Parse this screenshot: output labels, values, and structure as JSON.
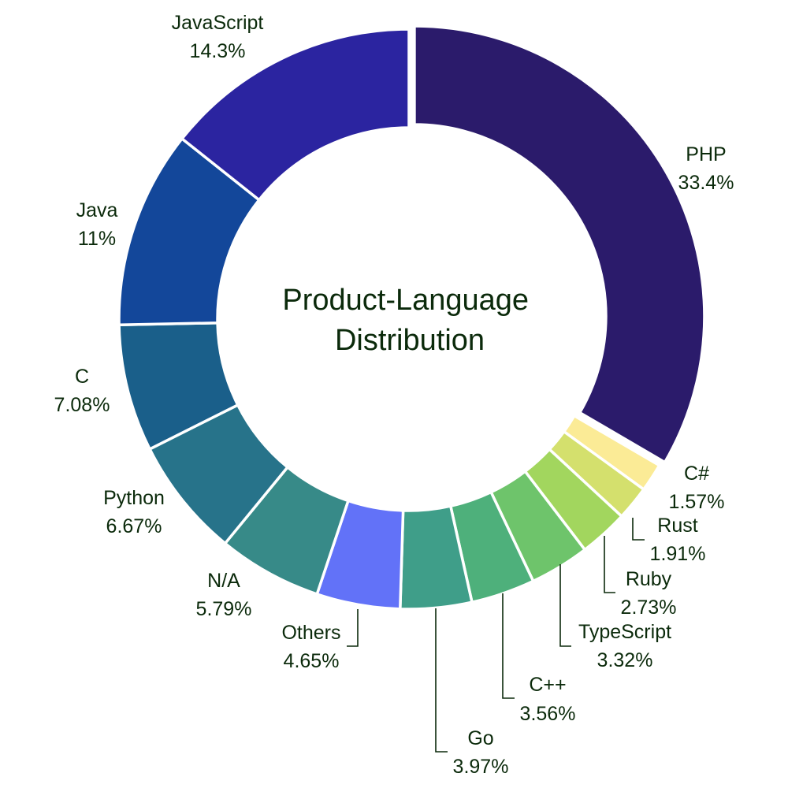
{
  "chart_data": {
    "type": "pie",
    "title": "Product-Language Distribution",
    "categories": [
      "PHP",
      "C#",
      "Rust",
      "Ruby",
      "TypeScript",
      "C++",
      "Go",
      "Others",
      "N/A",
      "Python",
      "C",
      "Java",
      "JavaScript"
    ],
    "values": [
      33.4,
      1.57,
      1.91,
      2.73,
      3.32,
      3.56,
      3.97,
      4.65,
      5.79,
      6.67,
      7.08,
      11,
      14.3
    ],
    "value_labels": [
      "33.4%",
      "1.57%",
      "1.91%",
      "2.73%",
      "3.32%",
      "3.56%",
      "3.97%",
      "4.65%",
      "5.79%",
      "6.67%",
      "7.08%",
      "11%",
      "14.3%"
    ],
    "colors": [
      "#2b1b6b",
      "#fbeb96",
      "#d4e06d",
      "#a2d65e",
      "#6ec46b",
      "#4eb07b",
      "#3f9e89",
      "#6272f8",
      "#378a88",
      "#27738a",
      "#1a5f8a",
      "#13479a",
      "#2b24a0"
    ],
    "hole": true,
    "pulled_slice": "PHP",
    "legend": "none"
  }
}
